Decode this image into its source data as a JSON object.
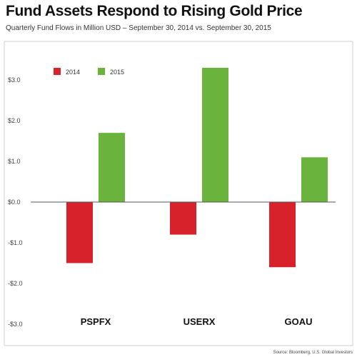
{
  "header": {
    "title": "Fund Assets Respond to Rising Gold Price",
    "subtitle": "Quarterly Fund Flows in Million USD – September 30, 2014 vs. September 30, 2015"
  },
  "footer": {
    "source": "Source: Bloomberg, U.S. Global Investors"
  },
  "colors": {
    "2014": "#d7212b",
    "2015": "#6ab43e"
  },
  "chart_data": {
    "type": "bar",
    "categories": [
      "PSPFX",
      "USERX",
      "GOAU"
    ],
    "series": [
      {
        "name": "2014",
        "values": [
          -1.5,
          -0.8,
          -1.6
        ]
      },
      {
        "name": "2015",
        "values": [
          1.7,
          3.3,
          1.1
        ]
      }
    ],
    "ylim": [
      -2.8,
      3.8
    ],
    "yticks": [
      3.0,
      2.0,
      1.0,
      0.0,
      -1.0,
      -2.0,
      -3.0
    ],
    "ytick_labels": [
      "$3.0",
      "$2.0",
      "$1.0",
      "$0.0",
      "-$1.0",
      "-$2.0",
      "-$3.0"
    ],
    "legend_position": "top-left",
    "grid": false
  }
}
